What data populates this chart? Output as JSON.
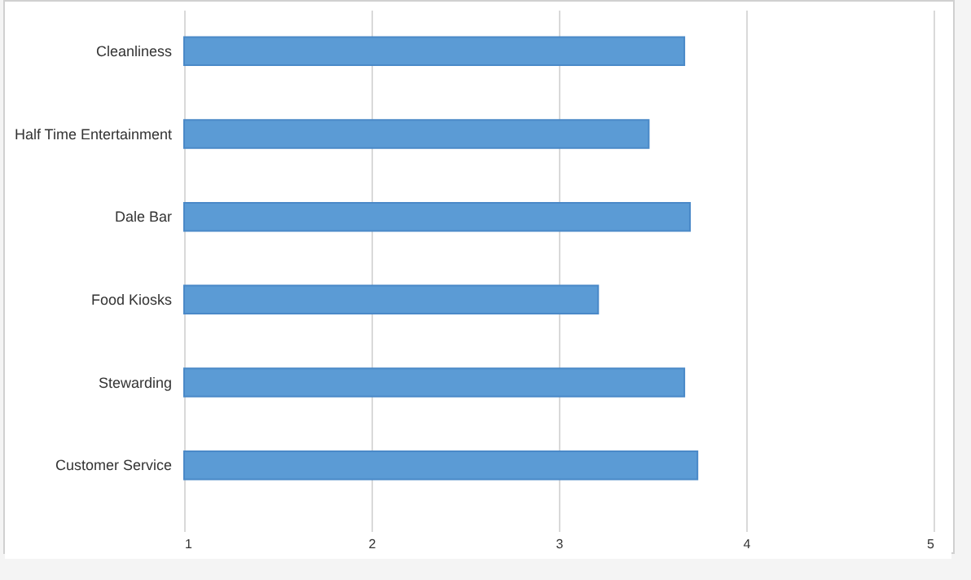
{
  "chart_data": {
    "type": "bar",
    "orientation": "horizontal",
    "categories": [
      "Cleanliness",
      "Half Time Entertainment",
      "Dale Bar",
      "Food Kiosks",
      "Stewarding",
      "Customer Service"
    ],
    "values": [
      3.67,
      3.48,
      3.7,
      3.21,
      3.67,
      3.74
    ],
    "color": "#5b9bd5",
    "xlim": [
      1,
      5
    ],
    "xticks": [
      1,
      2,
      3,
      4,
      5
    ],
    "grid": "x"
  }
}
